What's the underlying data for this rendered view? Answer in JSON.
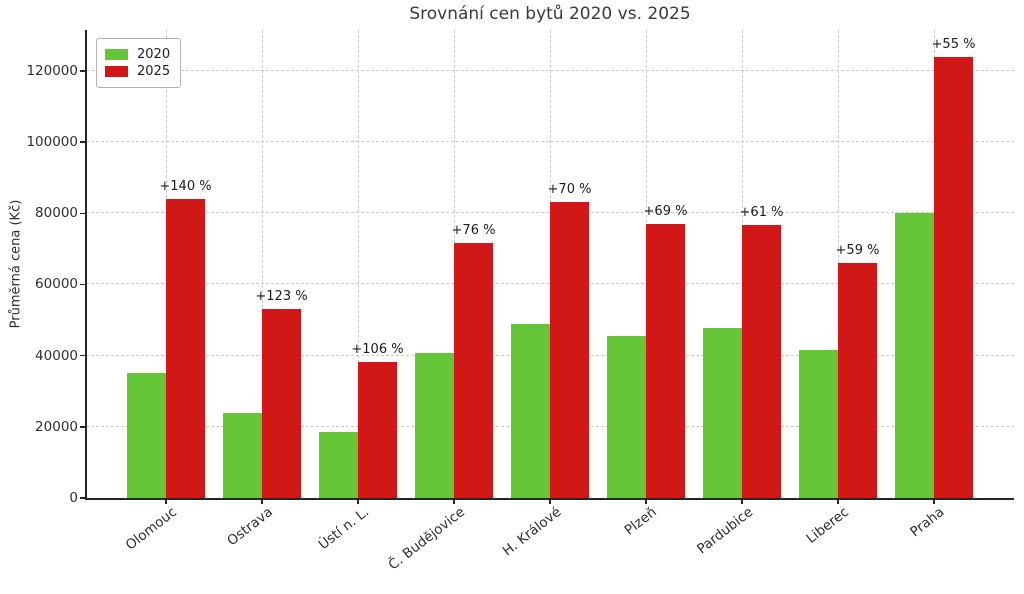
{
  "chart_data": {
    "type": "bar",
    "title": "Srovnání cen bytů 2020 vs. 2025",
    "ylabel": "Průměrná cena (Kč)",
    "categories": [
      "Olomouc",
      "Ostrava",
      "Ústí n. L.",
      "Č. Budějovice",
      "H. Králové",
      "Plzeň",
      "Pardubice",
      "Liberec",
      "Praha"
    ],
    "series": [
      {
        "name": "2020",
        "color": "#64c636",
        "values": [
          35000,
          23800,
          18500,
          40700,
          49000,
          45600,
          47700,
          41500,
          80000
        ]
      },
      {
        "name": "2025",
        "color": "#d11717",
        "values": [
          84000,
          53000,
          38100,
          71700,
          83300,
          77000,
          76800,
          66000,
          124000
        ]
      }
    ],
    "annotations": [
      "+140 %",
      "+123 %",
      "+106 %",
      "+76 %",
      "+70 %",
      "+69 %",
      "+61 %",
      "+59 %",
      "+55 %"
    ],
    "yticks": [
      0,
      20000,
      40000,
      60000,
      80000,
      100000,
      120000
    ],
    "ylim": [
      0,
      131500
    ],
    "grid": "dashed",
    "legend_position": "upper-left",
    "colors": {
      "bar_2020": "#64c636",
      "bar_2025": "#d11717",
      "grid": "#cccccc",
      "spine": "#262626"
    }
  }
}
